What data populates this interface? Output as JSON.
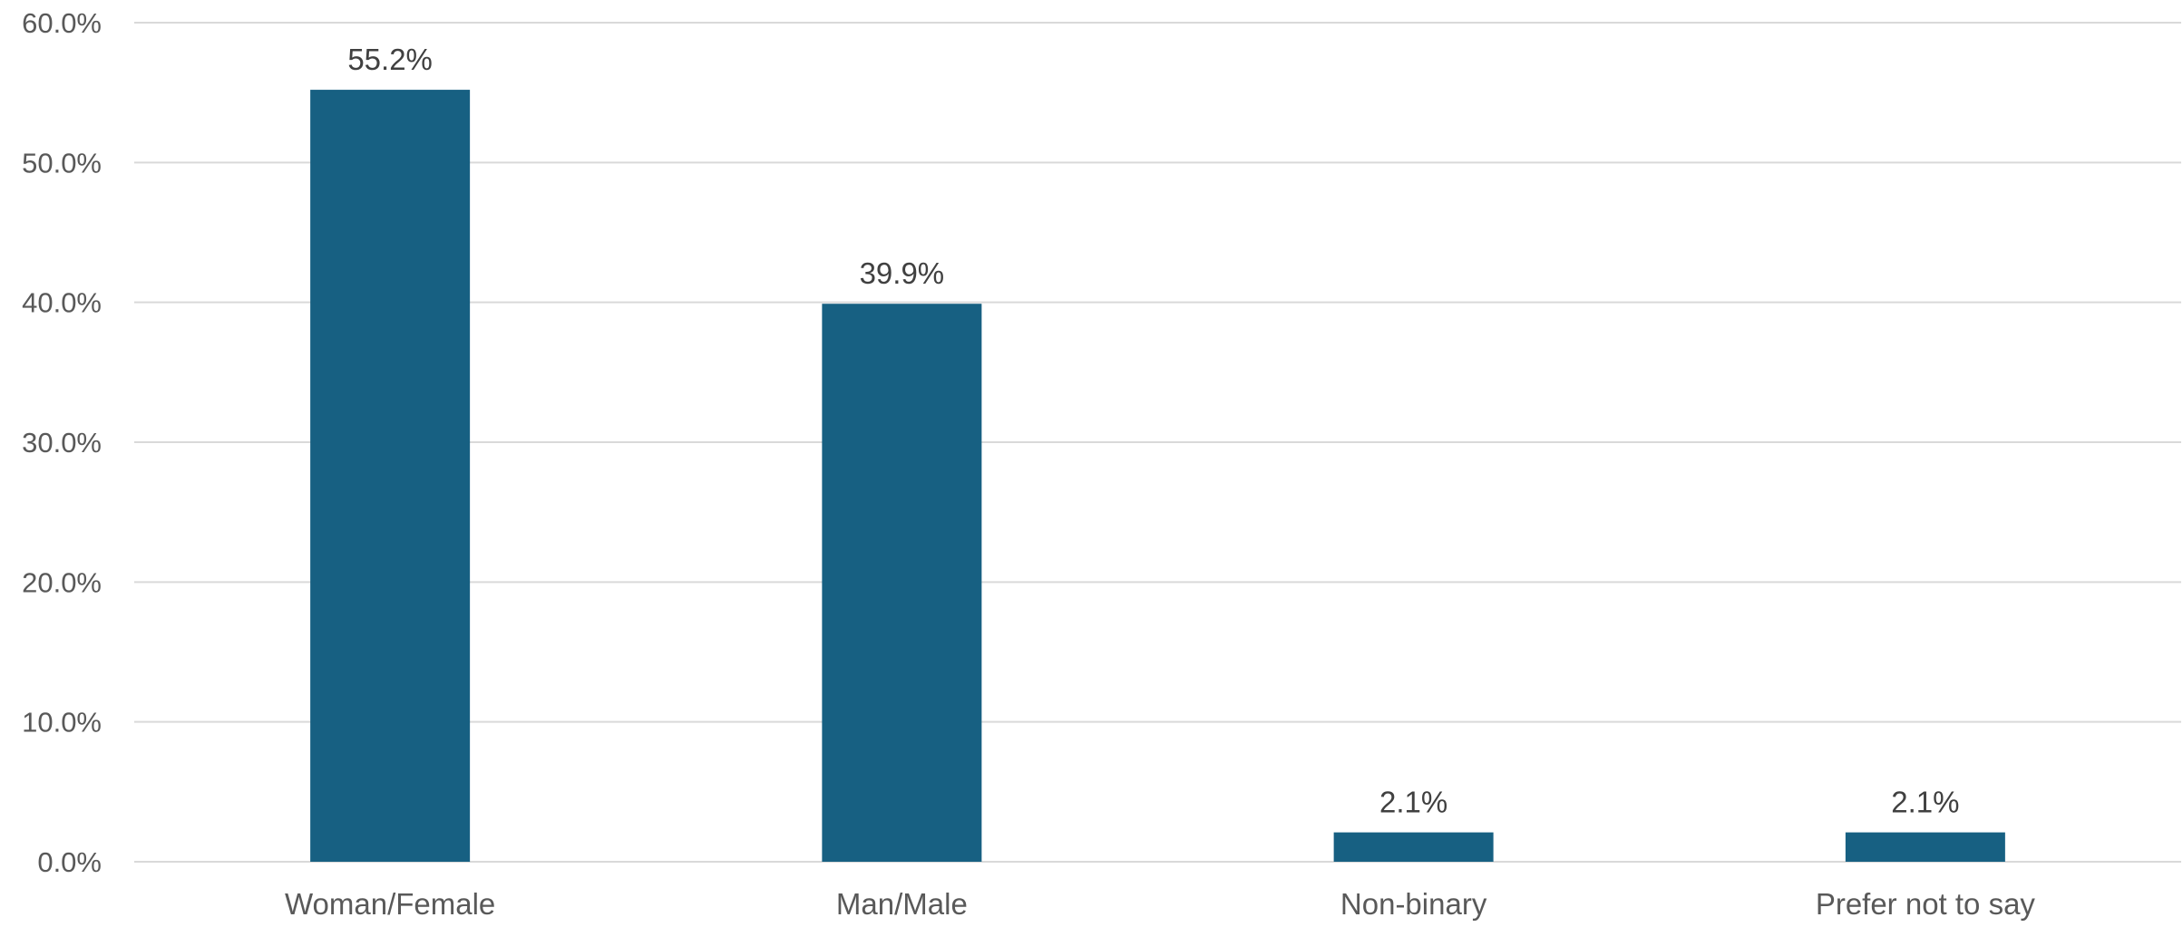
{
  "chart_data": {
    "type": "bar",
    "categories": [
      "Woman/Female",
      "Man/Male",
      "Non-binary",
      "Prefer not to say"
    ],
    "values": [
      55.2,
      39.9,
      2.1,
      2.1
    ],
    "data_labels": [
      "55.2%",
      "39.9%",
      "2.1%",
      "2.1%"
    ],
    "ylim": [
      0,
      60
    ],
    "yticks": [
      0,
      10,
      20,
      30,
      40,
      50,
      60
    ],
    "ytick_labels": [
      "0.0%",
      "10.0%",
      "20.0%",
      "30.0%",
      "40.0%",
      "50.0%",
      "60.0%"
    ],
    "grid": true,
    "legend": "none",
    "colors": {
      "bar": "#176082"
    }
  }
}
